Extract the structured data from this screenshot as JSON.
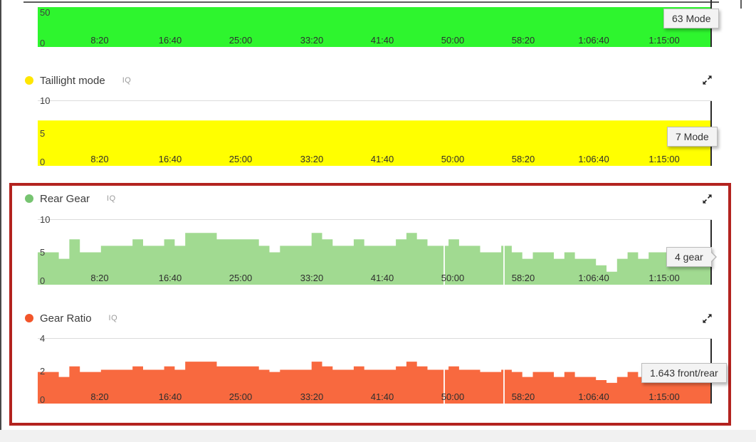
{
  "x_axis": {
    "tick_labels": [
      "8:20",
      "16:40",
      "25:00",
      "33:20",
      "41:40",
      "50:00",
      "58:20",
      "1:06:40",
      "1:15:00"
    ]
  },
  "annotation": {
    "highlight_box_color": "#b3231f",
    "highlighted_charts": [
      "Rear Gear",
      "Gear Ratio"
    ]
  },
  "icons": {
    "legend_dot": "series-color-dot",
    "expand": "expand-chart-icon"
  },
  "chart_data": [
    {
      "type": "area",
      "title": "",
      "badge": "",
      "series_label": "Mode",
      "constant_value": 63,
      "clipped_at_top": true,
      "ylim": [
        0,
        50
      ],
      "y_ticks": [
        50,
        0
      ],
      "x_ticks": [
        "8:20",
        "16:40",
        "25:00",
        "33:20",
        "41:40",
        "50:00",
        "58:20",
        "1:06:40",
        "1:15:00"
      ],
      "tooltip_label": "63 Mode",
      "fill_color": "#2ef52e",
      "legend_dot_color": "",
      "grid": false,
      "legend_position": "top-left-hidden"
    },
    {
      "type": "area",
      "title": "Taillight mode",
      "badge": "IQ",
      "series_label": "Mode",
      "constant_value": 7,
      "ylim": [
        0,
        10
      ],
      "y_ticks": [
        10,
        5,
        0
      ],
      "x_ticks": [
        "8:20",
        "16:40",
        "25:00",
        "33:20",
        "41:40",
        "50:00",
        "58:20",
        "1:06:40",
        "1:15:00"
      ],
      "tooltip_label": "7 Mode",
      "fill_color": "#ffff00",
      "legend_dot_color": "#ffe600",
      "grid": true,
      "legend_position": "top-left"
    },
    {
      "type": "area_steps",
      "title": "Rear Gear",
      "badge": "IQ",
      "series_label": "gear",
      "ylim": [
        0,
        10
      ],
      "y_ticks": [
        10,
        5,
        0
      ],
      "x_ticks": [
        "8:20",
        "16:40",
        "25:00",
        "33:20",
        "41:40",
        "50:00",
        "58:20",
        "1:06:40",
        "1:15:00"
      ],
      "values": [
        5,
        5,
        4,
        7,
        5,
        5,
        6,
        6,
        6,
        7,
        6,
        6,
        7,
        6,
        8,
        8,
        8,
        7,
        7,
        7,
        7,
        6,
        5,
        6,
        6,
        6,
        8,
        7,
        6,
        6,
        7,
        6,
        6,
        6,
        7,
        8,
        7,
        6,
        6,
        7,
        6,
        6,
        5,
        5,
        6,
        5,
        4,
        5,
        5,
        4,
        5,
        4,
        4,
        3,
        2,
        4,
        5,
        4,
        5,
        5,
        4,
        5,
        5,
        4
      ],
      "gap_fractions": [
        0.602,
        0.691
      ],
      "tooltip_label": "4 gear",
      "fill_color": "#a1da91",
      "legend_dot_color": "#77c471",
      "grid": true,
      "legend_position": "top-left",
      "highlighted": true
    },
    {
      "type": "area_steps",
      "title": "Gear Ratio",
      "badge": "IQ",
      "series_label": "front/rear",
      "ylim": [
        0,
        4
      ],
      "y_ticks": [
        4,
        2,
        0
      ],
      "x_ticks": [
        "8:20",
        "16:40",
        "25:00",
        "33:20",
        "41:40",
        "50:00",
        "58:20",
        "1:06:40",
        "1:15:00"
      ],
      "values": [
        1.95,
        1.95,
        1.643,
        2.3,
        1.95,
        1.95,
        2.09,
        2.09,
        2.09,
        2.3,
        2.09,
        2.09,
        2.3,
        2.09,
        2.59,
        2.59,
        2.59,
        2.3,
        2.3,
        2.3,
        2.3,
        2.09,
        1.95,
        2.09,
        2.09,
        2.09,
        2.59,
        2.3,
        2.09,
        2.09,
        2.3,
        2.09,
        2.09,
        2.09,
        2.3,
        2.59,
        2.3,
        2.09,
        2.09,
        2.3,
        2.09,
        2.09,
        1.95,
        1.95,
        2.09,
        1.95,
        1.643,
        1.95,
        1.95,
        1.643,
        1.95,
        1.643,
        1.643,
        1.45,
        1.28,
        1.643,
        1.95,
        1.643,
        1.95,
        1.95,
        1.643,
        1.95,
        1.95,
        1.643
      ],
      "gap_fractions": [
        0.602,
        0.691
      ],
      "tooltip_label": "1.643 front/rear",
      "fill_color": "#f8693f",
      "legend_dot_color": "#f2552a",
      "grid": true,
      "legend_position": "top-left",
      "highlighted": true
    }
  ]
}
